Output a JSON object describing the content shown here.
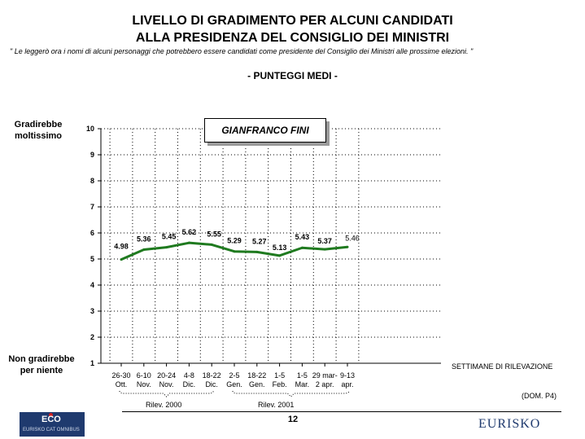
{
  "header": {
    "title_line1": "LIVELLO DI GRADIMENTO PER ALCUNI CANDIDATI",
    "title_line2": "ALLA PRESIDENZA DEL CONSIGLIO DEI MINISTRI",
    "note": "\" Le leggerò ora i nomi di alcuni personaggi che potrebbero essere candidati come presidente del Consiglio dei Ministri alle prossime elezioni. \"",
    "subtitle": "- PUNTEGGI MEDI -"
  },
  "chart_data": {
    "type": "line",
    "title": "GIANFRANCO FINI",
    "ylabel_top": "Gradirebbe moltissimo",
    "ylabel_bottom": "Non gradirebbe per niente",
    "xlabel": "SETTIMANE DI RILEVAZIONE",
    "ylim": [
      1,
      10
    ],
    "yticks": [
      1,
      2,
      3,
      4,
      5,
      6,
      7,
      8,
      9,
      10
    ],
    "grid": true,
    "categories": [
      {
        "line1": "26-30",
        "line2": "Ott."
      },
      {
        "line1": "6-10",
        "line2": "Nov."
      },
      {
        "line1": "20-24",
        "line2": "Nov."
      },
      {
        "line1": "4-8",
        "line2": "Dic."
      },
      {
        "line1": "18-22",
        "line2": "Dic."
      },
      {
        "line1": "2-5",
        "line2": "Gen."
      },
      {
        "line1": "18-22",
        "line2": "Gen."
      },
      {
        "line1": "1-5",
        "line2": "Feb."
      },
      {
        "line1": "1-5",
        "line2": "Mar."
      },
      {
        "line1": "29 mar-",
        "line2": "2 apr."
      },
      {
        "line1": "9-13",
        "line2": "apr."
      }
    ],
    "values": [
      4.98,
      5.36,
      5.45,
      5.62,
      5.55,
      5.29,
      5.27,
      5.13,
      5.43,
      5.37,
      5.46
    ],
    "value_labels": [
      "4.98",
      "5.36",
      "5.45",
      "5.62",
      "5.55",
      "5.29",
      "5.27",
      "5.13",
      "5.43",
      "5.37",
      "5.46"
    ],
    "line_color": "#1f7a1f",
    "periods": [
      {
        "label": "Rilev. 2000",
        "from": 0,
        "to": 4
      },
      {
        "label": "Rilev. 2001",
        "from": 5,
        "to": 10
      }
    ]
  },
  "footer": {
    "source": "(DOM. P4)",
    "page_number": "12",
    "logo_left": "ECO",
    "logo_left_sub": "EURISKO CAT OMNIBUS",
    "logo_right": "EURISKO"
  }
}
